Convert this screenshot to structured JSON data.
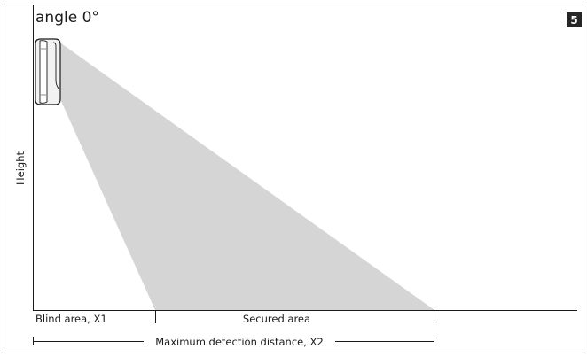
{
  "diagram": {
    "title": "angle 0°",
    "badge": "5",
    "y_axis_label": "Height",
    "blind_area_label": "Blind area, X1",
    "secured_area_label": "Secured area",
    "max_distance_label": "Maximum detection distance, X2"
  },
  "colors": {
    "background": "#ffffff",
    "border": "#3c3c3c",
    "axis": "#1a1a1a",
    "detection_cone": "#d5d5d5",
    "badge_bg": "#262626",
    "badge_text": "#ffffff",
    "sensor_body": "#f2f2f2"
  }
}
